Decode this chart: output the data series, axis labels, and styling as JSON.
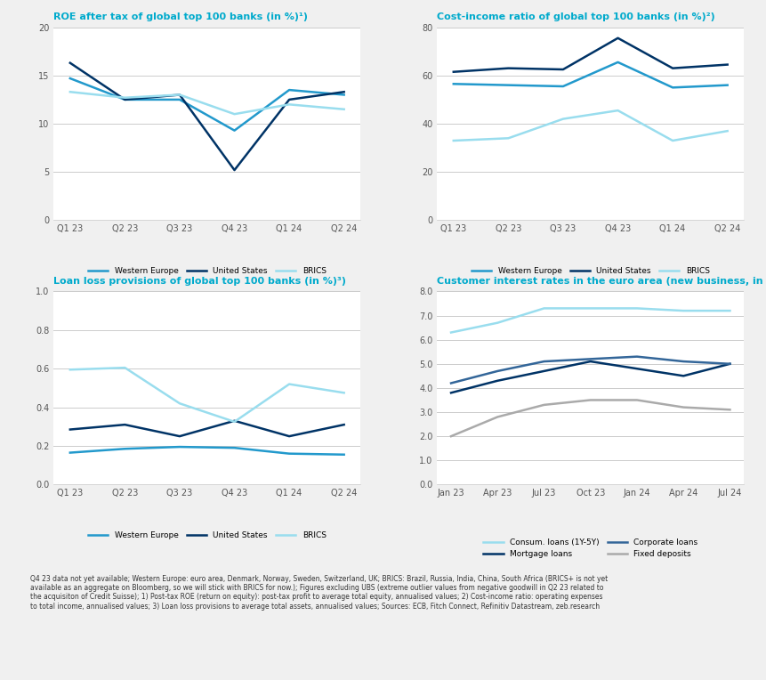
{
  "background_color": "#f0f0f0",
  "panel_bg": "#ffffff",
  "title_color": "#00aacc",
  "axis_color": "#555555",
  "grid_color": "#cccccc",
  "roe": {
    "title": "ROE after tax of global top 100 banks (in %)¹)",
    "xticks": [
      "Q1 23",
      "Q2 23",
      "Q3 23",
      "Q4 23",
      "Q1 24",
      "Q2 24"
    ],
    "ylim": [
      0,
      20
    ],
    "yticks": [
      0,
      5,
      10,
      15,
      20
    ],
    "western_europe": [
      14.7,
      12.5,
      12.5,
      9.3,
      13.5,
      13.0
    ],
    "united_states": [
      16.3,
      12.5,
      13.0,
      5.2,
      12.5,
      13.3
    ],
    "brics": [
      13.3,
      12.7,
      13.0,
      11.0,
      12.0,
      11.5
    ]
  },
  "cost_income": {
    "title": "Cost-income ratio of global top 100 banks (in %)²)",
    "xticks": [
      "Q1 23",
      "Q2 23",
      "Q3 23",
      "Q4 23",
      "Q1 24",
      "Q2 24"
    ],
    "ylim": [
      0,
      80
    ],
    "yticks": [
      0,
      20,
      40,
      60,
      80
    ],
    "western_europe": [
      56.5,
      56.0,
      55.5,
      65.5,
      55.0,
      56.0
    ],
    "united_states": [
      61.5,
      63.0,
      62.5,
      75.5,
      63.0,
      64.5
    ],
    "brics": [
      33.0,
      34.0,
      42.0,
      45.5,
      33.0,
      37.0
    ]
  },
  "loan_loss": {
    "title": "Loan loss provisions of global top 100 banks (in %)³)",
    "xticks": [
      "Q1 23",
      "Q2 23",
      "Q3 23",
      "Q4 23",
      "Q1 24",
      "Q2 24"
    ],
    "ylim": [
      0.0,
      1.0
    ],
    "yticks": [
      0.0,
      0.2,
      0.4,
      0.6,
      0.8,
      1.0
    ],
    "western_europe": [
      0.165,
      0.185,
      0.195,
      0.19,
      0.16,
      0.155
    ],
    "united_states": [
      0.285,
      0.31,
      0.25,
      0.33,
      0.25,
      0.31
    ],
    "brics": [
      0.595,
      0.605,
      0.42,
      0.325,
      0.52,
      0.475
    ]
  },
  "interest_rates": {
    "title": "Customer interest rates in the euro area (new business, in %)",
    "xticks": [
      "Jan 23",
      "Apr 23",
      "Jul 23",
      "Oct 23",
      "Jan 24",
      "Apr 24",
      "Jul 24"
    ],
    "ylim": [
      0.0,
      8.0
    ],
    "yticks": [
      0.0,
      1.0,
      2.0,
      3.0,
      4.0,
      5.0,
      6.0,
      7.0,
      8.0
    ],
    "consumer_loans": [
      6.3,
      6.7,
      7.3,
      7.3,
      7.3,
      7.2,
      7.2
    ],
    "mortgage_loans": [
      3.8,
      4.3,
      4.7,
      5.1,
      4.8,
      4.5,
      5.0
    ],
    "corporate_loans": [
      4.2,
      4.7,
      5.1,
      5.2,
      5.3,
      5.1,
      5.0
    ],
    "fixed_deposits": [
      2.0,
      2.8,
      3.3,
      3.5,
      3.5,
      3.2,
      3.1
    ]
  },
  "color_western_europe": "#2299cc",
  "color_united_states": "#003366",
  "color_brics": "#99ddee",
  "color_consumer_loans": "#99ddee",
  "color_mortgage_loans": "#003366",
  "color_corporate_loans": "#336699",
  "color_fixed_deposits": "#aaaaaa",
  "footnote": "Q4 23 data not yet available; Western Europe: euro area, Denmark, Norway, Sweden, Switzerland, UK; BRICS: Brazil, Russia, India, China, South Africa (BRICS+ is not yet\navailable as an aggregate on Bloomberg, so we will stick with BRICS for now.); Figures excluding UBS (extreme outlier values from negative goodwill in Q2 23 related to\nthe acquisiton of Credit Suisse); 1) Post-tax ROE (return on equity): post-tax profit to average total equity, annualised values; 2) Cost-income ratio: operating expenses\nto total income, annualised values; 3) Loan loss provisions to average total assets, annualised values; Sources: ECB, Fitch Connect, Refinitiv Datastream, zeb.research"
}
